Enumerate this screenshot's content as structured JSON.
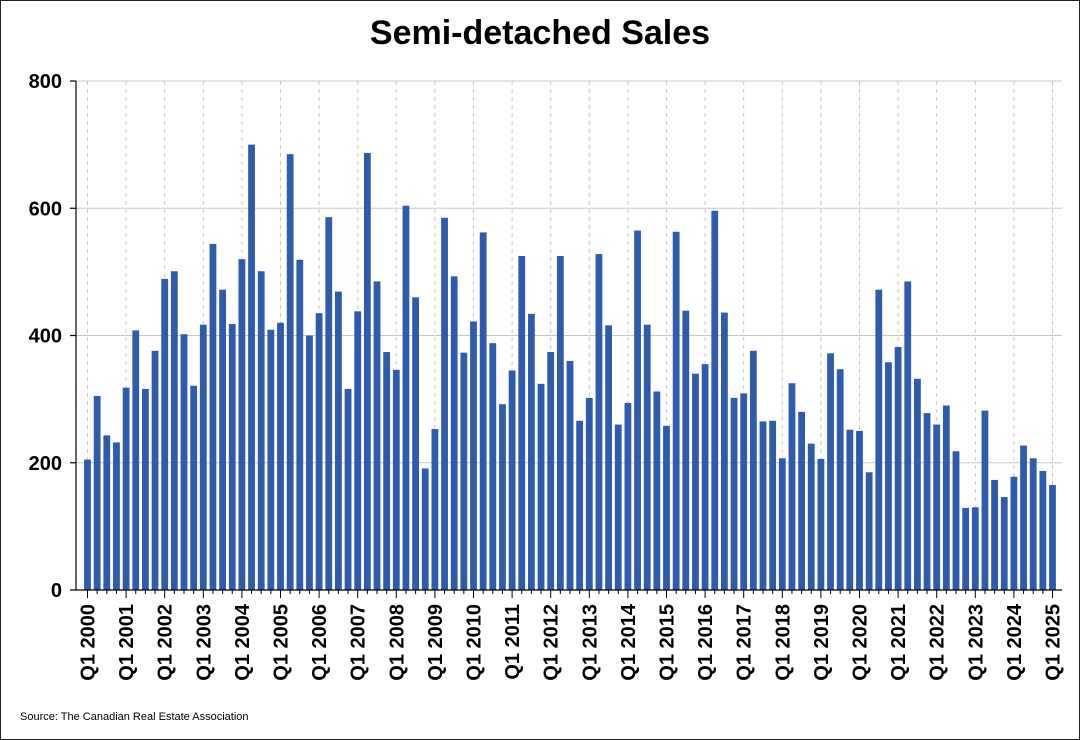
{
  "chart_data": {
    "type": "bar",
    "title": "Semi-detached Sales",
    "source": "Source: The Canadian Real Estate Association",
    "xlabel": "",
    "ylabel": "",
    "ylim": [
      0,
      800
    ],
    "yticks": [
      0,
      200,
      400,
      600,
      800
    ],
    "grid": true,
    "bar_color": "#2F5BAD",
    "x_tick_labels": [
      "Q1 2000",
      "Q1 2001",
      "Q1 2002",
      "Q1 2003",
      "Q1 2004",
      "Q1 2005",
      "Q1 2006",
      "Q1 2007",
      "Q1 2008",
      "Q1 2009",
      "Q1 2010",
      "Q1 2011",
      "Q1 2012",
      "Q1 2013",
      "Q1 2014",
      "Q1 2015",
      "Q1 2016",
      "Q1 2017",
      "Q1 2018",
      "Q1 2019",
      "Q1 2020",
      "Q1 2021",
      "Q1 2022",
      "Q1 2023",
      "Q1 2024",
      "Q1 2025"
    ],
    "categories": [
      "Q1 2000",
      "Q2 2000",
      "Q3 2000",
      "Q4 2000",
      "Q1 2001",
      "Q2 2001",
      "Q3 2001",
      "Q4 2001",
      "Q1 2002",
      "Q2 2002",
      "Q3 2002",
      "Q4 2002",
      "Q1 2003",
      "Q2 2003",
      "Q3 2003",
      "Q4 2003",
      "Q1 2004",
      "Q2 2004",
      "Q3 2004",
      "Q4 2004",
      "Q1 2005",
      "Q2 2005",
      "Q3 2005",
      "Q4 2005",
      "Q1 2006",
      "Q2 2006",
      "Q3 2006",
      "Q4 2006",
      "Q1 2007",
      "Q2 2007",
      "Q3 2007",
      "Q4 2007",
      "Q1 2008",
      "Q2 2008",
      "Q3 2008",
      "Q4 2008",
      "Q1 2009",
      "Q2 2009",
      "Q3 2009",
      "Q4 2009",
      "Q1 2010",
      "Q2 2010",
      "Q3 2010",
      "Q4 2010",
      "Q1 2011",
      "Q2 2011",
      "Q3 2011",
      "Q4 2011",
      "Q1 2012",
      "Q2 2012",
      "Q3 2012",
      "Q4 2012",
      "Q1 2013",
      "Q2 2013",
      "Q3 2013",
      "Q4 2013",
      "Q1 2014",
      "Q2 2014",
      "Q3 2014",
      "Q4 2014",
      "Q1 2015",
      "Q2 2015",
      "Q3 2015",
      "Q4 2015",
      "Q1 2016",
      "Q2 2016",
      "Q3 2016",
      "Q4 2016",
      "Q1 2017",
      "Q2 2017",
      "Q3 2017",
      "Q4 2017",
      "Q1 2018",
      "Q2 2018",
      "Q3 2018",
      "Q4 2018",
      "Q1 2019",
      "Q2 2019",
      "Q3 2019",
      "Q4 2019",
      "Q1 2020",
      "Q2 2020",
      "Q3 2020",
      "Q4 2020",
      "Q1 2021",
      "Q2 2021",
      "Q3 2021",
      "Q4 2021",
      "Q1 2022",
      "Q2 2022",
      "Q3 2022",
      "Q4 2022",
      "Q1 2023",
      "Q2 2023",
      "Q3 2023",
      "Q4 2023",
      "Q1 2024",
      "Q2 2024",
      "Q3 2024",
      "Q4 2024",
      "Q1 2025"
    ],
    "values": [
      205,
      305,
      243,
      232,
      318,
      408,
      316,
      376,
      489,
      501,
      402,
      321,
      417,
      544,
      472,
      418,
      520,
      700,
      501,
      409,
      420,
      685,
      519,
      400,
      435,
      586,
      469,
      316,
      438,
      687,
      485,
      374,
      346,
      604,
      460,
      191,
      253,
      585,
      493,
      373,
      422,
      562,
      388,
      292,
      345,
      525,
      434,
      324,
      374,
      525,
      360,
      266,
      302,
      528,
      416,
      260,
      294,
      565,
      417,
      312,
      258,
      563,
      439,
      340,
      355,
      596,
      436,
      302,
      309,
      376,
      265,
      266,
      207,
      325,
      280,
      230,
      206,
      372,
      347,
      252,
      250,
      185,
      472,
      358,
      382,
      485,
      332,
      278,
      260,
      290,
      218,
      129,
      130,
      282,
      173,
      146,
      178,
      227,
      207,
      187,
      165
    ]
  }
}
